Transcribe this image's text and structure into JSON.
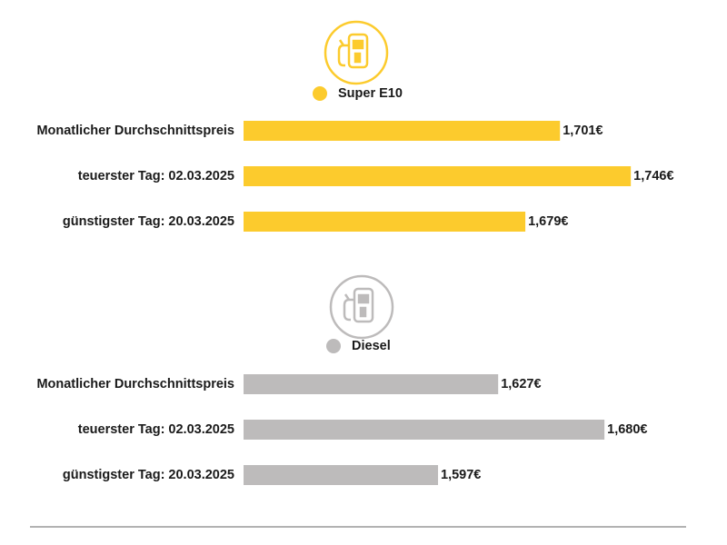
{
  "chart_data": [
    {
      "type": "bar",
      "orientation": "horizontal",
      "categories": [
        "Monatlicher Durchschnittspreis",
        "teuerster Tag: 02.03.2025",
        "günstigster Tag: 20.03.2025"
      ],
      "series": [
        {
          "name": "Super E10",
          "color": "#fccb2d",
          "values": [
            1.701,
            1.746,
            1.679
          ],
          "value_labels": [
            "1,701€",
            "1,746€",
            "1,679€"
          ]
        }
      ],
      "xlim": [
        1.5,
        1.784
      ]
    },
    {
      "type": "bar",
      "orientation": "horizontal",
      "categories": [
        "Monatlicher Durchschnittspreis",
        "teuerster Tag: 02.03.2025",
        "günstigster Tag: 20.03.2025"
      ],
      "series": [
        {
          "name": "Diesel",
          "color": "#bdbbbb",
          "values": [
            1.627,
            1.68,
            1.597
          ],
          "value_labels": [
            "1,627€",
            "1,680€",
            "1,597€"
          ]
        }
      ],
      "xlim": [
        1.5,
        1.723
      ]
    }
  ]
}
